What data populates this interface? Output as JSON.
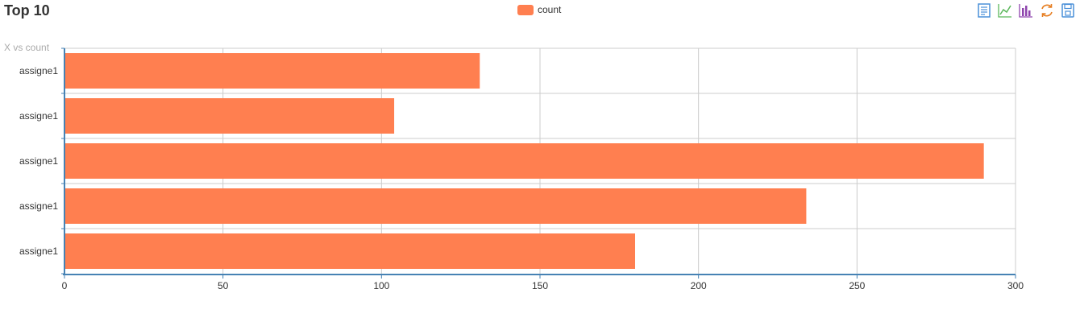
{
  "header": {
    "title": "Top 10"
  },
  "toolbox": {
    "items": [
      {
        "icon": "data-view-icon",
        "color": "#4a90d9"
      },
      {
        "icon": "line-chart-icon",
        "color": "#5cb85c"
      },
      {
        "icon": "bar-chart-icon",
        "color": "#8e44ad"
      },
      {
        "icon": "restore-icon",
        "color": "#e67e22"
      },
      {
        "icon": "save-image-icon",
        "color": "#4a90d9"
      }
    ]
  },
  "chart_data": {
    "type": "bar",
    "orientation": "horizontal",
    "title": "Top 10",
    "subtitle": "X vs count",
    "categories": [
      "assigne1",
      "assigne1",
      "assigne1",
      "assigne1",
      "assigne1"
    ],
    "series": [
      {
        "name": "count",
        "color": "#ff7f50",
        "values": [
          131,
          104,
          290,
          234,
          180
        ]
      }
    ],
    "x_ticks": [
      "0",
      "50",
      "100",
      "150",
      "200",
      "250",
      "300"
    ],
    "xlim": [
      0,
      300
    ],
    "grid": true,
    "legend": "top-center"
  }
}
